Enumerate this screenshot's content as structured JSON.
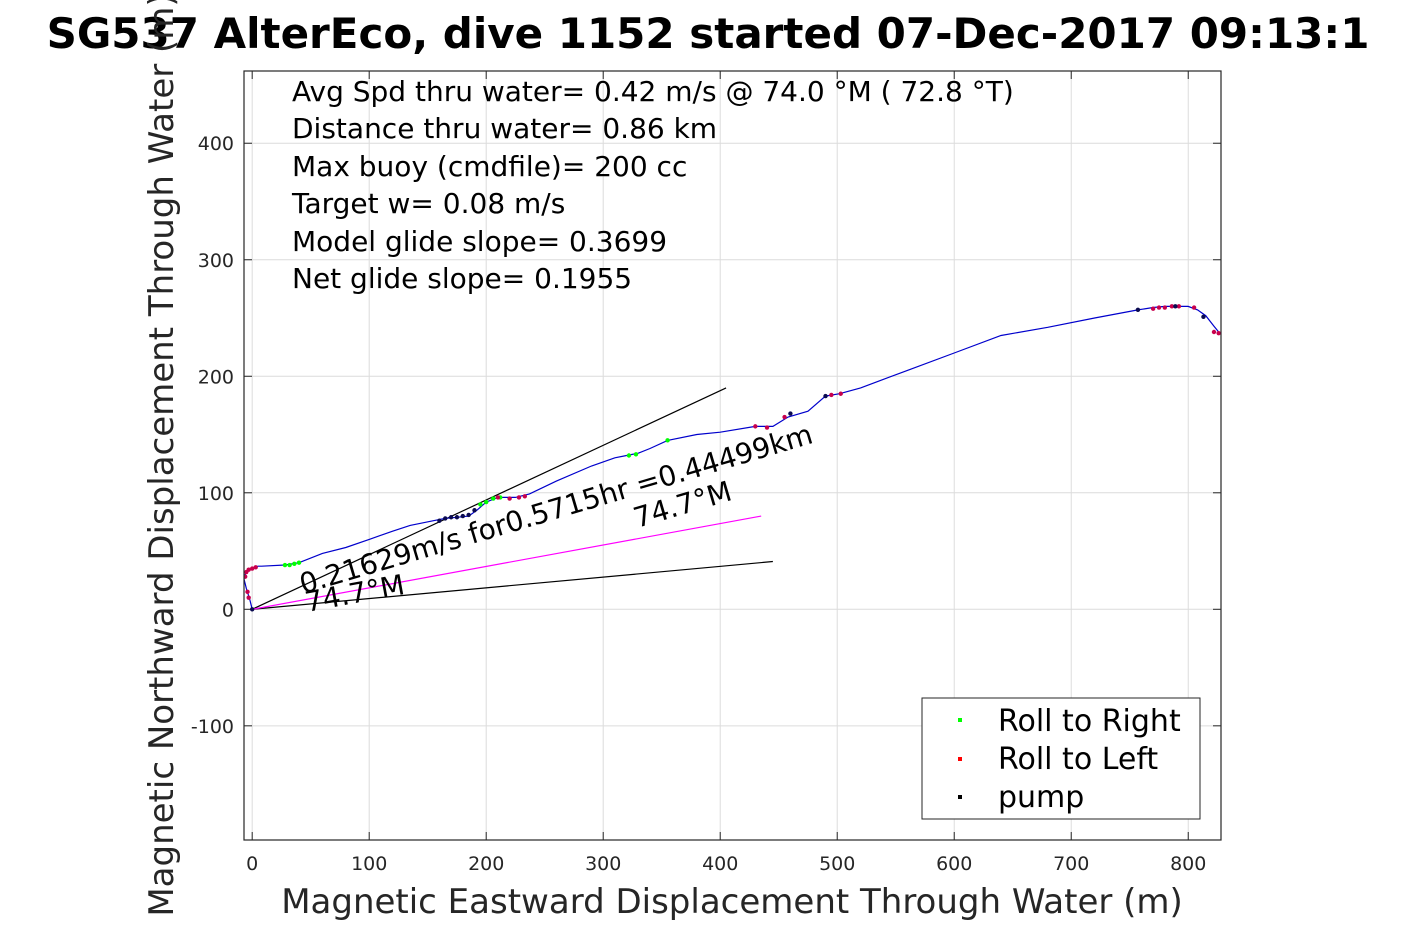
{
  "chart_data": {
    "type": "line",
    "title": "SG537 AlterEco, dive 1152 started 07-Dec-2017 09:13:1",
    "xlabel": "Magnetic Eastward Displacement Through Water (m)",
    "ylabel": "Magnetic Northward Displacement Through Water (m)",
    "xlim": [
      -7,
      828
    ],
    "ylim": [
      -198,
      462
    ],
    "xticks": [
      "0",
      "100",
      "200",
      "300",
      "400",
      "500",
      "600",
      "700",
      "800"
    ],
    "yticks": [
      "-100",
      "0",
      "100",
      "200",
      "300",
      "400"
    ],
    "xtick_values": [
      0,
      100,
      200,
      300,
      400,
      500,
      600,
      700,
      800
    ],
    "ytick_values": [
      -100,
      0,
      100,
      200,
      300,
      400
    ],
    "grid": true,
    "stats": [
      "Avg Spd thru water=  0.42 m/s @  74.0 °M ( 72.8 °T)",
      "Distance thru water=  0.86 km",
      "Max buoy (cmdfile)= 200 cc",
      "Target w= 0.08 m/s",
      "Model glide slope= 0.3699",
      "Net glide slope= 0.1955"
    ],
    "annotations": {
      "speed_label": "0.21629m/s for0.5715hr =0.44499km",
      "heading_label_1": "74.7°M",
      "heading_label_2": "74.7°M"
    },
    "legend": {
      "placement": "bottom-right",
      "entries": [
        {
          "label": "Roll to Right",
          "color": "#00ff00"
        },
        {
          "label": "Roll to Left",
          "color": "#ff0000"
        },
        {
          "label": "pump",
          "color": "#000000"
        }
      ]
    },
    "track": {
      "name": "",
      "color": "#0000cc",
      "x": [
        0,
        -2,
        -5,
        -7,
        -6,
        -4,
        -1,
        2,
        5,
        8,
        28,
        40,
        60,
        80,
        100,
        120,
        135,
        155,
        165,
        175,
        185,
        192,
        200,
        210,
        225,
        237,
        260,
        290,
        310,
        320,
        330,
        340,
        355,
        380,
        400,
        430,
        445,
        458,
        475,
        490,
        502,
        520,
        560,
        600,
        640,
        680,
        720,
        757,
        770,
        780,
        790,
        800,
        808,
        815,
        822,
        826
      ],
      "y": [
        0,
        8,
        18,
        26,
        30,
        33,
        35,
        36,
        37,
        37,
        38,
        40,
        48,
        53,
        60,
        67,
        72,
        76,
        78,
        79,
        80,
        85,
        92,
        96,
        96,
        99,
        110,
        123,
        130,
        132,
        134,
        138,
        145,
        150,
        152,
        157,
        157,
        165,
        170,
        183,
        185,
        190,
        205,
        220,
        235,
        242,
        250,
        257,
        259,
        260,
        260,
        260,
        257,
        252,
        243,
        238
      ],
      "right_roll": [
        [
          28,
          38
        ],
        [
          32,
          38
        ],
        [
          36,
          39
        ],
        [
          40,
          40
        ],
        [
          195,
          90
        ],
        [
          200,
          92
        ],
        [
          206,
          95
        ],
        [
          212,
          96
        ],
        [
          322,
          132
        ],
        [
          328,
          133
        ],
        [
          355,
          145
        ]
      ],
      "left_roll": [
        [
          -6,
          28
        ],
        [
          -5,
          32
        ],
        [
          -3,
          34
        ],
        [
          0,
          35
        ],
        [
          3,
          36
        ],
        [
          -4,
          15
        ],
        [
          -3,
          10
        ],
        [
          210,
          96
        ],
        [
          220,
          95
        ],
        [
          228,
          96
        ],
        [
          233,
          97
        ],
        [
          430,
          157
        ],
        [
          440,
          156
        ],
        [
          455,
          165
        ],
        [
          495,
          184
        ],
        [
          503,
          185
        ],
        [
          770,
          258
        ],
        [
          775,
          259
        ],
        [
          780,
          259
        ],
        [
          786,
          260
        ],
        [
          792,
          260
        ],
        [
          805,
          259
        ],
        [
          822,
          238
        ],
        [
          826,
          237
        ]
      ],
      "pump": [
        [
          0,
          0
        ],
        [
          160,
          76
        ],
        [
          165,
          78
        ],
        [
          170,
          79
        ],
        [
          175,
          79
        ],
        [
          180,
          80
        ],
        [
          185,
          81
        ],
        [
          190,
          85
        ],
        [
          460,
          168
        ],
        [
          490,
          183
        ],
        [
          757,
          257
        ],
        [
          789,
          260
        ],
        [
          813,
          251
        ]
      ]
    },
    "heading_line": {
      "name": "",
      "x": [
        0,
        435
      ],
      "y": [
        0,
        80
      ],
      "color": "#ff00ff"
    },
    "glide_lines": [
      {
        "name": "",
        "x": [
          0,
          405
        ],
        "y": [
          0,
          190
        ]
      },
      {
        "name": "",
        "x": [
          0,
          445
        ],
        "y": [
          0,
          41
        ]
      }
    ]
  }
}
